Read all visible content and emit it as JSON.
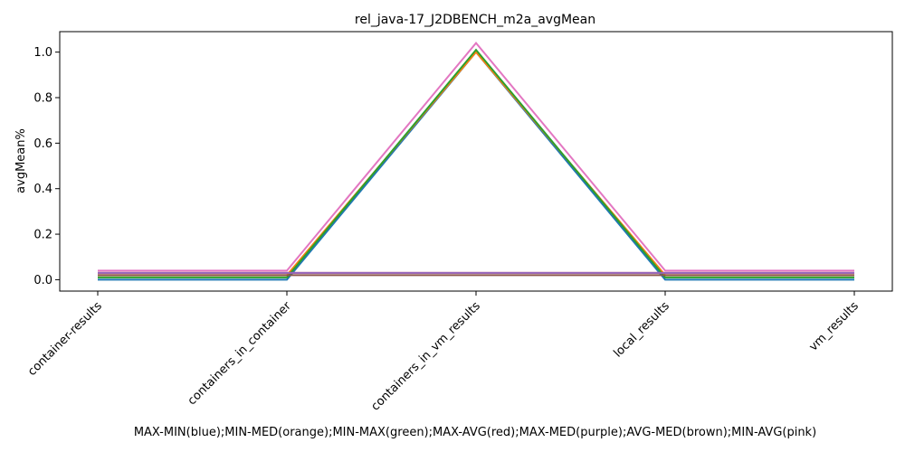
{
  "chart_data": {
    "type": "line",
    "title": "rel_java-17_J2DBENCH_m2a_avgMean",
    "xlabel": "MAX-MIN(blue);MIN-MED(orange);MIN-MAX(green);MAX-AVG(red);MAX-MED(purple);AVG-MED(brown);MIN-AVG(pink)",
    "ylabel": "avgMean%",
    "categories": [
      "container-results",
      "containers_in_container",
      "containers_in_vm_results",
      "local_results",
      "vm_results"
    ],
    "ylim": [
      -0.05,
      1.09
    ],
    "yticks": [
      0.0,
      0.2,
      0.4,
      0.6,
      0.8,
      1.0
    ],
    "ytick_labels": [
      "0.0",
      "0.2",
      "0.4",
      "0.6",
      "0.8",
      "1.0"
    ],
    "grid": false,
    "series": [
      {
        "color": "#1f77b4",
        "values": [
          0.0,
          0.0,
          1.0,
          0.0,
          0.0
        ]
      },
      {
        "color": "#ff7f0e",
        "values": [
          0.02,
          0.02,
          1.0,
          0.02,
          0.02
        ]
      },
      {
        "color": "#2ca02c",
        "values": [
          0.01,
          0.01,
          1.01,
          0.01,
          0.01
        ]
      },
      {
        "color": "#d62728",
        "values": [
          0.03,
          0.03,
          0.03,
          0.03,
          0.03
        ]
      },
      {
        "color": "#9467bd",
        "values": [
          0.03,
          0.03,
          0.03,
          0.03,
          0.03
        ]
      },
      {
        "color": "#8c564b",
        "values": [
          0.02,
          0.02,
          0.02,
          0.02,
          0.02
        ]
      },
      {
        "color": "#e377c2",
        "values": [
          0.04,
          0.04,
          1.04,
          0.04,
          0.04
        ]
      }
    ]
  }
}
